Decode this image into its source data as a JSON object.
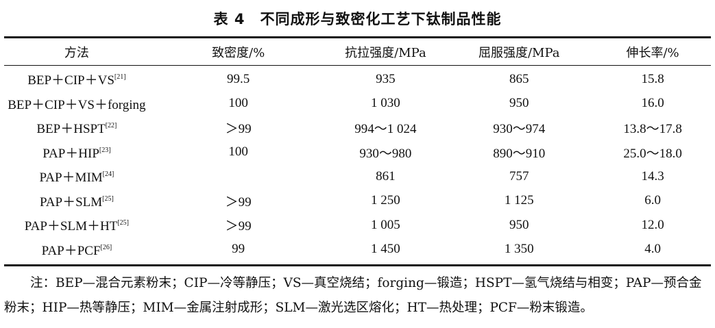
{
  "title": "表 4　不同成形与致密化工艺下钛制品性能",
  "columns": [
    "方法",
    "致密度/%",
    "抗拉强度/MPa",
    "屈服强度/MPa",
    "伸长率/%"
  ],
  "rows": [
    {
      "method": "BEP＋CIP＋VS",
      "ref": "[21]",
      "density": "99.5",
      "tensile": "935",
      "yield": "865",
      "elongation": "15.8"
    },
    {
      "method": "BEP＋CIP＋VS＋forging",
      "ref": "",
      "density": "100",
      "tensile": "1 030",
      "yield": "950",
      "elongation": "16.0"
    },
    {
      "method": "BEP＋HSPT",
      "ref": "[22]",
      "density": "＞99",
      "tensile": "994～1 024",
      "yield": "930～974",
      "elongation": "13.8～17.8"
    },
    {
      "method": "PAP＋HIP",
      "ref": "[23]",
      "density": "100",
      "tensile": "930～980",
      "yield": "890～910",
      "elongation": "25.0～18.0"
    },
    {
      "method": "PAP＋MIM",
      "ref": "[24]",
      "density": "",
      "tensile": "861",
      "yield": "757",
      "elongation": "14.3"
    },
    {
      "method": "PAP＋SLM",
      "ref": "[25]",
      "density": "＞99",
      "tensile": "1 250",
      "yield": "1 125",
      "elongation": "6.0"
    },
    {
      "method": "PAP＋SLM＋HT",
      "ref": "[25]",
      "density": "＞99",
      "tensile": "1 005",
      "yield": "950",
      "elongation": "12.0"
    },
    {
      "method": "PAP＋PCF",
      "ref": "[26]",
      "density": "99",
      "tensile": "1 450",
      "yield": "1 350",
      "elongation": "4.0"
    }
  ],
  "note": "注：BEP—混合元素粉末；CIP—冷等静压；VS—真空烧结；forging—锻造；HSPT—氢气烧结与相变；PAP—预合金粉末；HIP—热等静压；MIM—金属注射成形；SLM—激光选区熔化；HT—热处理；PCF—粉末锻造。"
}
